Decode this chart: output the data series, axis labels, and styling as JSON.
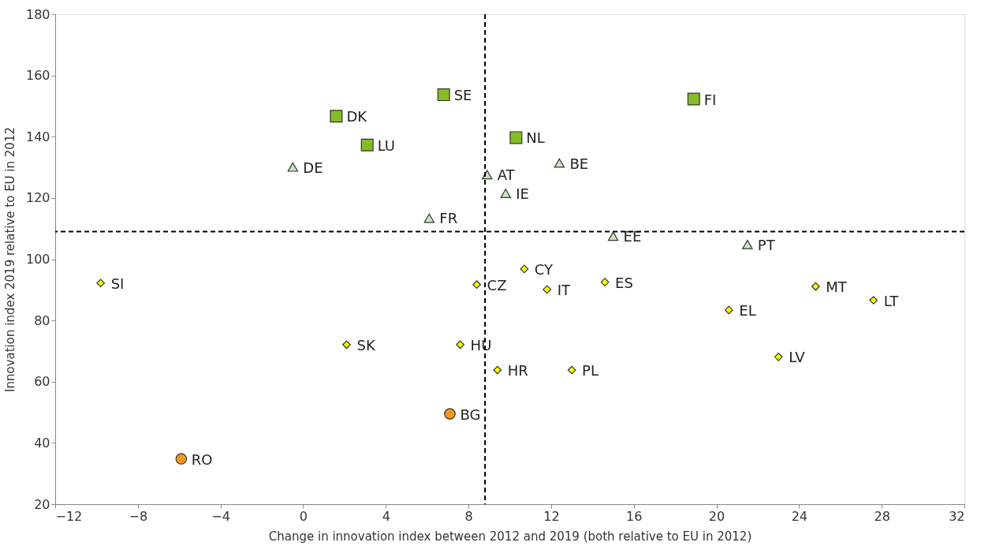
{
  "chart_data": {
    "type": "scatter",
    "xlabel": "Change in innovation index between 2012 and 2019 (both relative to EU in 2012)",
    "ylabel": "Innovation index 2019 relative to EU in 2012",
    "xlim": [
      -12,
      32
    ],
    "xticks": [
      -12,
      -8,
      -4,
      0,
      4,
      8,
      12,
      16,
      20,
      24,
      28,
      32
    ],
    "ylim": [
      20,
      180
    ],
    "yticks": [
      20,
      40,
      60,
      80,
      100,
      120,
      140,
      160,
      180
    ],
    "grid": false,
    "ref_lines": [
      {
        "axis": "x",
        "value": 8.8,
        "line_style": "dashed",
        "color": "#000000"
      },
      {
        "axis": "y",
        "value": 109,
        "line_style": "dashed",
        "color": "#000000"
      }
    ],
    "series": [
      {
        "color": "#86bc25",
        "marker": "square",
        "x": [
          6.8,
          1.6,
          3.1,
          10.3,
          18.9
        ],
        "values": [
          153.7,
          146.7,
          137.3,
          139.7,
          152.3
        ],
        "value_labels": [
          "SE",
          "DK",
          "LU",
          "NL",
          "FI"
        ]
      },
      {
        "color": "#c8e6c0",
        "marker": "triangle",
        "x": [
          -0.5,
          8.9,
          9.8,
          12.4,
          6.1,
          15.0,
          21.5
        ],
        "values": [
          130.1,
          127.6,
          121.5,
          131.4,
          113.4,
          107.5,
          104.8
        ],
        "value_labels": [
          "DE",
          "AT",
          "IE",
          "BE",
          "FR",
          "EE",
          "PT"
        ]
      },
      {
        "color": "#ffff00",
        "marker": "diamond",
        "x": [
          -9.8,
          8.4,
          10.7,
          11.8,
          14.6,
          24.8,
          27.6,
          20.6,
          23.0,
          2.1,
          7.6,
          9.4,
          13.0
        ],
        "values": [
          92.2,
          91.7,
          96.8,
          90.1,
          92.5,
          91.1,
          86.6,
          83.4,
          68.1,
          72.1,
          72.1,
          63.8,
          63.8
        ],
        "value_labels": [
          "SI",
          "CZ",
          "CY",
          "IT",
          "ES",
          "MT",
          "LT",
          "EL",
          "LV",
          "SK",
          "HU",
          "HR",
          "PL"
        ]
      },
      {
        "color": "#f39a1e",
        "marker": "circle",
        "x": [
          7.1,
          -5.9
        ],
        "values": [
          49.5,
          34.8
        ],
        "value_labels": [
          "BG",
          "RO"
        ]
      }
    ]
  }
}
